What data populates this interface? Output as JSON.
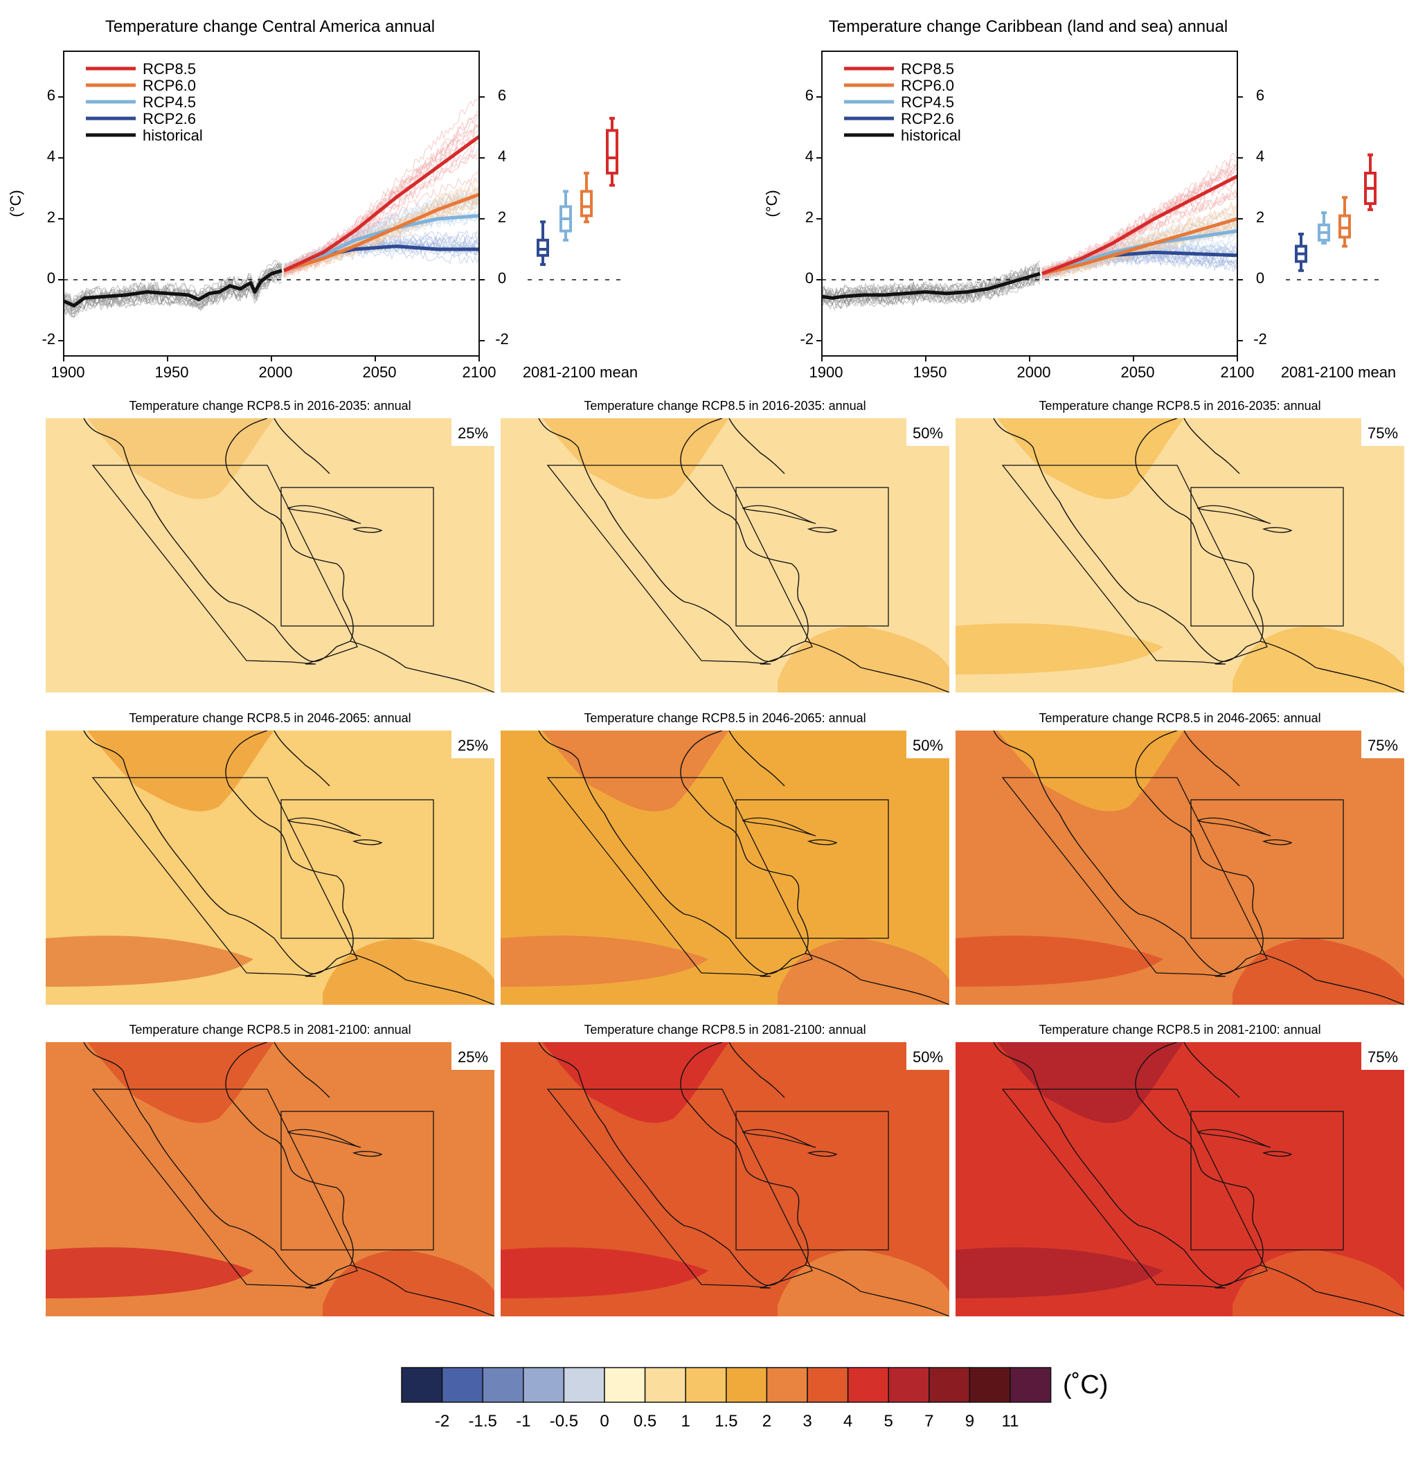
{
  "colors": {
    "rcp85": "#d62a2a",
    "rcp60": "#e5793a",
    "rcp45": "#7fb2da",
    "rcp26": "#2e4a92",
    "historical": "#111111"
  },
  "chart_data": [
    {
      "type": "line",
      "title": "Temperature change Central America annual",
      "ylabel": "(°C)",
      "xlim": [
        1900,
        2100
      ],
      "ylim": [
        -2.5,
        7.5
      ],
      "x_ticks": [
        "1900",
        "1950",
        "2000",
        "2050",
        "2100"
      ],
      "y_ticks": [
        "-2",
        "0",
        "2",
        "4",
        "6"
      ],
      "legend_position": "top-left",
      "series": [
        {
          "name": "RCP8.5",
          "key": "rcp85",
          "x": [
            2006,
            2025,
            2040,
            2060,
            2080,
            2100
          ],
          "y": [
            0.3,
            0.9,
            1.6,
            2.7,
            3.7,
            4.7
          ]
        },
        {
          "name": "RCP6.0",
          "key": "rcp60",
          "x": [
            2006,
            2025,
            2040,
            2060,
            2080,
            2100
          ],
          "y": [
            0.3,
            0.7,
            1.1,
            1.7,
            2.3,
            2.8
          ]
        },
        {
          "name": "RCP4.5",
          "key": "rcp45",
          "x": [
            2006,
            2025,
            2040,
            2060,
            2080,
            2100
          ],
          "y": [
            0.3,
            0.8,
            1.3,
            1.7,
            2.0,
            2.1
          ]
        },
        {
          "name": "RCP2.6",
          "key": "rcp26",
          "x": [
            2006,
            2025,
            2040,
            2060,
            2080,
            2100
          ],
          "y": [
            0.3,
            0.8,
            1.0,
            1.1,
            1.0,
            1.0
          ]
        },
        {
          "name": "historical",
          "key": "historical",
          "x": [
            1900,
            1905,
            1910,
            1920,
            1930,
            1940,
            1950,
            1960,
            1965,
            1970,
            1975,
            1980,
            1985,
            1990,
            1992,
            1995,
            2000,
            2005
          ],
          "y": [
            -0.7,
            -0.85,
            -0.6,
            -0.55,
            -0.5,
            -0.4,
            -0.45,
            -0.5,
            -0.65,
            -0.45,
            -0.4,
            -0.2,
            -0.3,
            -0.1,
            -0.4,
            -0.05,
            0.2,
            0.3
          ]
        }
      ],
      "boxplot": {
        "label": "2081-2100 mean",
        "y_ticks": [
          "-2",
          "0",
          "2",
          "4",
          "6"
        ],
        "boxes": [
          {
            "key": "rcp26",
            "min": 0.5,
            "q1": 0.8,
            "median": 1.0,
            "q3": 1.3,
            "max": 1.9
          },
          {
            "key": "rcp45",
            "min": 1.3,
            "q1": 1.6,
            "median": 2.0,
            "q3": 2.4,
            "max": 2.9
          },
          {
            "key": "rcp60",
            "min": 1.9,
            "q1": 2.1,
            "median": 2.4,
            "q3": 2.9,
            "max": 3.5
          },
          {
            "key": "rcp85",
            "min": 3.1,
            "q1": 3.5,
            "median": 4.0,
            "q3": 4.9,
            "max": 5.3
          }
        ]
      }
    },
    {
      "type": "line",
      "title": "Temperature change Caribbean (land and sea) annual",
      "ylabel": "(°C)",
      "xlim": [
        1900,
        2100
      ],
      "ylim": [
        -2.5,
        7.5
      ],
      "x_ticks": [
        "1900",
        "1950",
        "2000",
        "2050",
        "2100"
      ],
      "y_ticks": [
        "-2",
        "0",
        "2",
        "4",
        "6"
      ],
      "legend_position": "top-left",
      "series": [
        {
          "name": "RCP8.5",
          "key": "rcp85",
          "x": [
            2006,
            2025,
            2040,
            2060,
            2080,
            2100
          ],
          "y": [
            0.2,
            0.7,
            1.2,
            2.0,
            2.7,
            3.4
          ]
        },
        {
          "name": "RCP6.0",
          "key": "rcp60",
          "x": [
            2006,
            2025,
            2040,
            2060,
            2080,
            2100
          ],
          "y": [
            0.2,
            0.5,
            0.8,
            1.2,
            1.6,
            2.0
          ]
        },
        {
          "name": "RCP4.5",
          "key": "rcp45",
          "x": [
            2006,
            2025,
            2040,
            2060,
            2080,
            2100
          ],
          "y": [
            0.2,
            0.6,
            0.9,
            1.2,
            1.4,
            1.6
          ]
        },
        {
          "name": "RCP2.6",
          "key": "rcp26",
          "x": [
            2006,
            2025,
            2040,
            2060,
            2080,
            2100
          ],
          "y": [
            0.2,
            0.6,
            0.8,
            0.9,
            0.85,
            0.8
          ]
        },
        {
          "name": "historical",
          "key": "historical",
          "x": [
            1900,
            1905,
            1910,
            1920,
            1930,
            1940,
            1950,
            1960,
            1970,
            1975,
            1980,
            1985,
            1990,
            1995,
            2000,
            2005
          ],
          "y": [
            -0.55,
            -0.6,
            -0.55,
            -0.5,
            -0.5,
            -0.45,
            -0.4,
            -0.45,
            -0.4,
            -0.35,
            -0.3,
            -0.2,
            -0.1,
            0.0,
            0.1,
            0.2
          ]
        }
      ],
      "boxplot": {
        "label": "2081-2100 mean",
        "y_ticks": [
          "-2",
          "0",
          "2",
          "4",
          "6"
        ],
        "boxes": [
          {
            "key": "rcp26",
            "min": 0.3,
            "q1": 0.6,
            "median": 0.85,
            "q3": 1.1,
            "max": 1.5
          },
          {
            "key": "rcp45",
            "min": 1.2,
            "q1": 1.3,
            "median": 1.55,
            "q3": 1.8,
            "max": 2.2
          },
          {
            "key": "rcp60",
            "min": 1.1,
            "q1": 1.4,
            "median": 1.7,
            "q3": 2.1,
            "max": 2.7
          },
          {
            "key": "rcp85",
            "min": 2.3,
            "q1": 2.5,
            "median": 3.0,
            "q3": 3.5,
            "max": 4.1
          }
        ]
      }
    },
    {
      "type": "heatmap",
      "maps": [
        {
          "title": "Temperature change RCP8.5 in 2016-2035: annual",
          "percentile": "25%",
          "base": "#fbdd9e",
          "patches": [
            "#f7c878"
          ]
        },
        {
          "title": "Temperature change RCP8.5 in 2016-2035: annual",
          "percentile": "50%",
          "base": "#fbdd9e",
          "patches": [
            "#f8c46a",
            "#f8c46a"
          ]
        },
        {
          "title": "Temperature change RCP8.5 in 2016-2035: annual",
          "percentile": "75%",
          "base": "#fbdd9e",
          "patches": [
            "#f7c565",
            "#f7c565",
            "#f7c565"
          ]
        },
        {
          "title": "Temperature change RCP8.5 in 2046-2065: annual",
          "percentile": "25%",
          "base": "#f9cf78",
          "patches": [
            "#f0a840",
            "#f0a840",
            "#e88a45"
          ]
        },
        {
          "title": "Temperature change RCP8.5 in 2046-2065: annual",
          "percentile": "50%",
          "base": "#f0aa3c",
          "patches": [
            "#e8843f",
            "#e8843f",
            "#e8843f"
          ]
        },
        {
          "title": "Temperature change RCP8.5 in 2046-2065: annual",
          "percentile": "75%",
          "base": "#e8843f",
          "patches": [
            "#f0aa3c",
            "#e05a2c",
            "#e05a2c"
          ]
        },
        {
          "title": "Temperature change RCP8.5 in 2081-2100: annual",
          "percentile": "25%",
          "base": "#e8843f",
          "patches": [
            "#e05a2c",
            "#e05a2c",
            "#d63a2a"
          ]
        },
        {
          "title": "Temperature change RCP8.5 in 2081-2100: annual",
          "percentile": "50%",
          "base": "#e05a2c",
          "patches": [
            "#d6302a",
            "#e8843f",
            "#d6302a"
          ]
        },
        {
          "title": "Temperature change RCP8.5 in 2081-2100: annual",
          "percentile": "75%",
          "base": "#d9362a",
          "patches": [
            "#b2262c",
            "#e05a2c",
            "#b2262c"
          ]
        }
      ]
    },
    {
      "type": "table",
      "name": "colorbar",
      "unit": "(˚C)",
      "colors": [
        "#1f2a55",
        "#4a63a8",
        "#6f84b8",
        "#98aacf",
        "#ccd5e3",
        "#fff4cc",
        "#fbdd9e",
        "#f7c565",
        "#f0aa3c",
        "#e8843f",
        "#e05a2c",
        "#d6302a",
        "#b2262c",
        "#8a1c22",
        "#5c1418",
        "#5a1a3c"
      ],
      "labels": [
        "-2",
        "-1.5",
        "-1",
        "-0.5",
        "0",
        "0.5",
        "1",
        "1.5",
        "2",
        "3",
        "4",
        "5",
        "7",
        "9",
        "11"
      ]
    }
  ]
}
